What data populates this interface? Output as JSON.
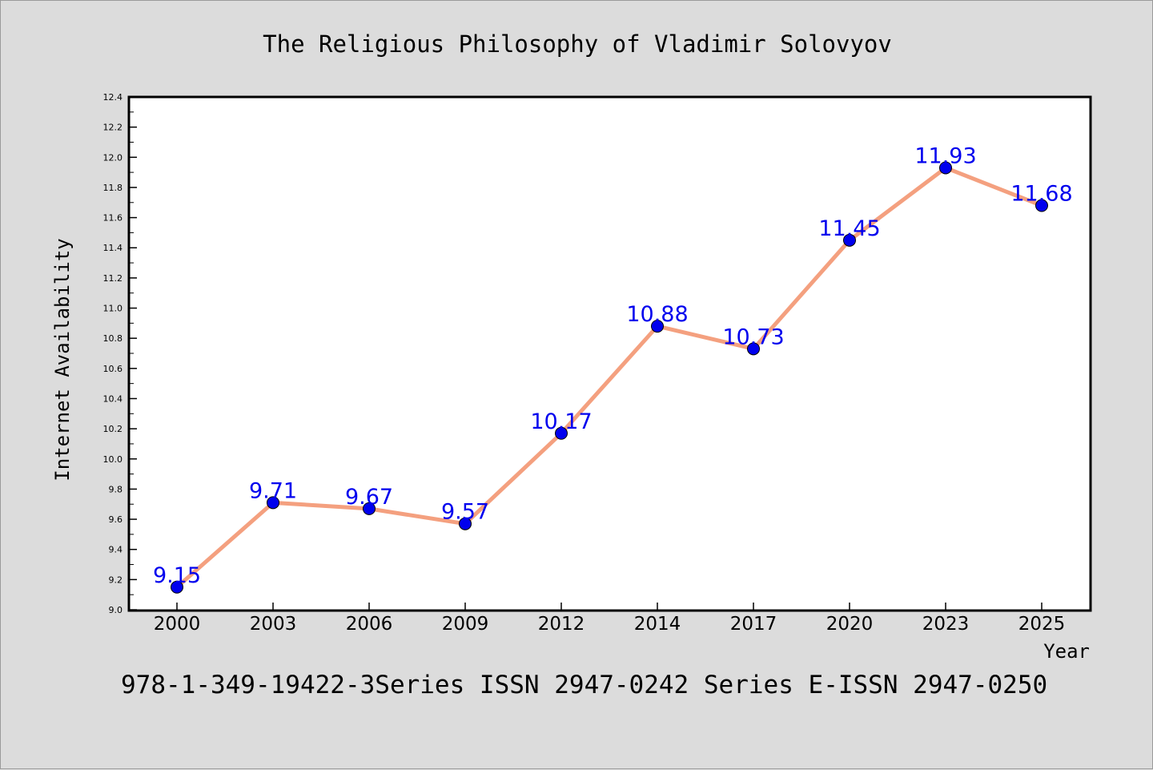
{
  "chart_data": {
    "type": "line",
    "title": "The Religious Philosophy of Vladimir Solovyov",
    "xlabel": "Year",
    "ylabel": "Internet Availability",
    "footer": "978-1-349-19422-3Series ISSN 2947-0242 Series E-ISSN 2947-0250",
    "categories": [
      "2000",
      "2003",
      "2006",
      "2009",
      "2012",
      "2014",
      "2017",
      "2020",
      "2023",
      "2025"
    ],
    "values": [
      9.15,
      9.71,
      9.67,
      9.57,
      10.17,
      10.88,
      10.73,
      11.45,
      11.93,
      11.68
    ],
    "data_labels": [
      "9.15",
      "9.71",
      "9.67",
      "9.57",
      "10.17",
      "10.88",
      "10.73",
      "11.45",
      "11.93",
      "11.68"
    ],
    "ylim": [
      9.0,
      12.4
    ],
    "yticks": [
      "9.0",
      "9.2",
      "9.4",
      "9.6",
      "9.8",
      "10.0",
      "10.2",
      "10.4",
      "10.6",
      "10.8",
      "11.0",
      "11.2",
      "11.4",
      "11.6",
      "11.8",
      "12.0",
      "12.2",
      "12.4"
    ],
    "grid": false,
    "legend": "none",
    "colors": {
      "line": "#f4a07f",
      "marker": "#0000ee",
      "data_label": "#0000ee",
      "plot_background": "#ffffff",
      "figure_background": "#dcdcdc"
    }
  }
}
